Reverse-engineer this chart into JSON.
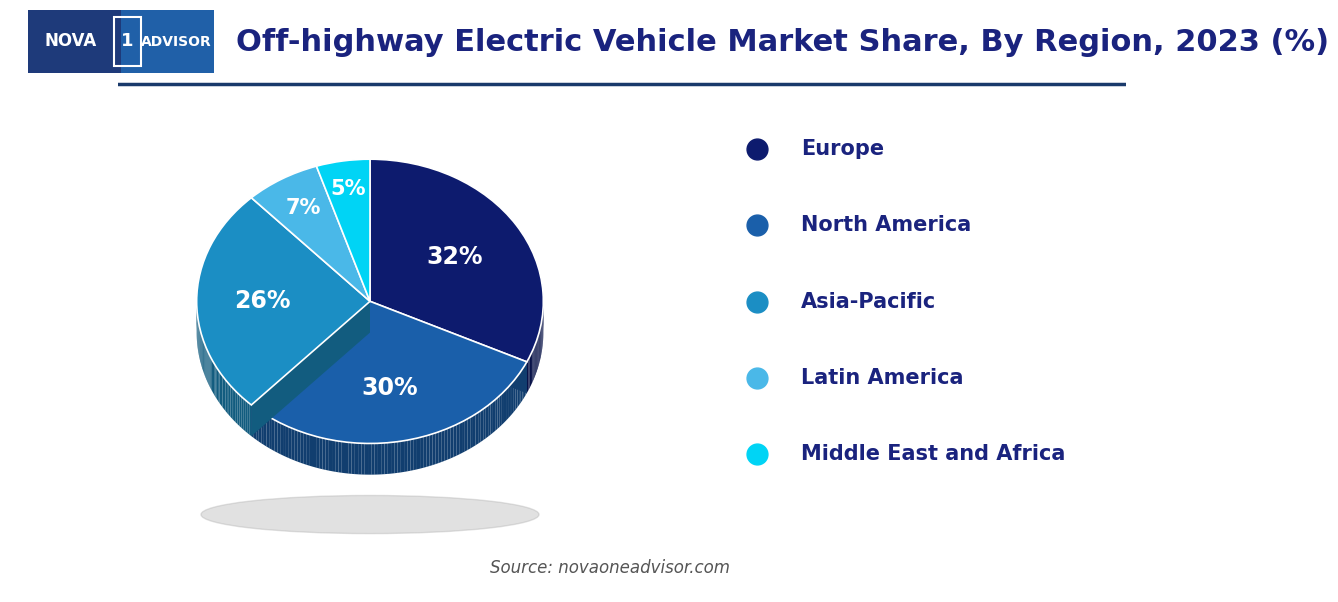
{
  "title": "Off-highway Electric Vehicle Market Share, By Region, 2023 (%)",
  "labels": [
    "Europe",
    "North America",
    "Asia-Pacific",
    "Latin America",
    "Middle East and Africa"
  ],
  "values": [
    32,
    30,
    26,
    7,
    5
  ],
  "colors": [
    "#0d1b6e",
    "#1a5faa",
    "#1b8ec4",
    "#4ab8e8",
    "#00d4f5"
  ],
  "pct_labels": [
    "32%",
    "30%",
    "26%",
    "7%",
    "5%"
  ],
  "source_text": "Source: novaoneadvisor.com",
  "background_color": "#ffffff",
  "text_color": "#1a237e",
  "title_fontsize": 22,
  "legend_fontsize": 15,
  "logo_bg": "#1e3a7a",
  "logo_gradient_right": "#2a6db5",
  "start_angle": 72
}
